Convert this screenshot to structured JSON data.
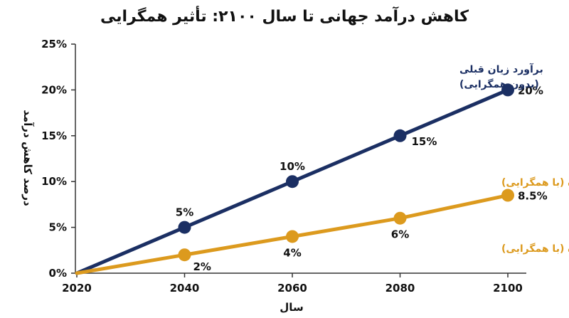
{
  "chart_data": {
    "type": "line",
    "title": "کاهش درآمد جهانی تا سال ۲۱۰۰: تأثیر همگرایی",
    "xlabel": "سال",
    "ylabel": "درصد کاهش درآمد",
    "x": [
      2020,
      2040,
      2060,
      2080,
      2100
    ],
    "x_tick_labels": [
      "2020",
      "2040",
      "2060",
      "2080",
      "2100"
    ],
    "xlim": [
      2020,
      2100
    ],
    "ylim": [
      0,
      25
    ],
    "y_ticks": [
      0,
      5,
      10,
      15,
      20,
      25
    ],
    "y_tick_labels": [
      "0%",
      "5%",
      "10%",
      "15%",
      "20%",
      "25%"
    ],
    "grid": false,
    "series": [
      {
        "values": [
          0,
          5,
          10,
          15,
          20
        ],
        "color": "#1b2f63",
        "point_labels": [
          "",
          "5%",
          "10%",
          "15%",
          "20%"
        ]
      },
      {
        "values": [
          0,
          2,
          4,
          6,
          8.5
        ],
        "color": "#dc9a1e",
        "point_labels": [
          "",
          "2%",
          "4%",
          "6%",
          "8.5%"
        ]
      }
    ],
    "annotations": [
      {
        "lines": [
          "برآورد زیان قبلی",
          "(بدون همگرایی)"
        ],
        "color": "#1b2f63"
      },
      {
        "lines": [
          "برآورد زیان بازنگری شده (با همگرایی)"
        ],
        "color": "#dc9a1e"
      },
      {
        "lines": [
          "برآورد زیان بازنگری شده (با همگرایی)"
        ],
        "color": "#dc9a1e"
      }
    ]
  }
}
